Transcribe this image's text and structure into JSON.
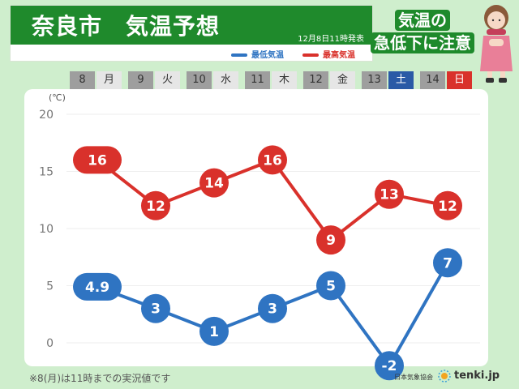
{
  "header": {
    "title": "奈良市　気温予想",
    "issued": "12月8日11時発表",
    "legend_low": "最低気温",
    "legend_high": "最高気温"
  },
  "callout": {
    "line1": "気温の",
    "line2": "急低下に注意"
  },
  "days": [
    {
      "num": "8",
      "wd": "月",
      "wd_type": "normal"
    },
    {
      "num": "9",
      "wd": "火",
      "wd_type": "normal"
    },
    {
      "num": "10",
      "wd": "水",
      "wd_type": "normal"
    },
    {
      "num": "11",
      "wd": "木",
      "wd_type": "normal"
    },
    {
      "num": "12",
      "wd": "金",
      "wd_type": "normal"
    },
    {
      "num": "13",
      "wd": "土",
      "wd_type": "sat"
    },
    {
      "num": "14",
      "wd": "日",
      "wd_type": "sun"
    }
  ],
  "chart_data": {
    "type": "line",
    "categories": [
      "8 月",
      "9 火",
      "10 水",
      "11 木",
      "12 金",
      "13 土",
      "14 日"
    ],
    "series": [
      {
        "name": "最高気温",
        "values": [
          16,
          12,
          14,
          16,
          9,
          13,
          12
        ],
        "labels": [
          "16",
          "12",
          "14",
          "16",
          "9",
          "13",
          "12"
        ],
        "color": "#d9312b"
      },
      {
        "name": "最低気温",
        "values": [
          4.9,
          3,
          1,
          3,
          5,
          -2,
          7
        ],
        "labels": [
          "4.9",
          "3",
          "1",
          "3",
          "5",
          "-2",
          "7"
        ],
        "color": "#2f74c2"
      }
    ],
    "ylabel": "(℃)",
    "yticks": [
      0,
      5,
      10,
      15,
      20
    ],
    "ylim": [
      -3,
      21
    ],
    "grid": true
  },
  "footnote": "※8(月)は11時までの実況値です",
  "source": "日本気象協会",
  "brand": "tenki.jp"
}
